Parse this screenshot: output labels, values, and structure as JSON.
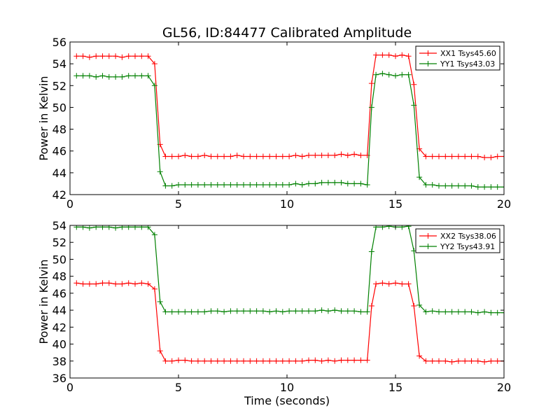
{
  "chart_data": [
    {
      "type": "line",
      "title": "GL56, ID:84477 Calibrated Amplitude",
      "xlabel": "",
      "ylabel": "Power in Kelvin",
      "xlim": [
        0,
        20
      ],
      "ylim": [
        42,
        56
      ],
      "x_ticks": [
        "0",
        "5",
        "10",
        "15",
        "20"
      ],
      "y_ticks": [
        "42",
        "44",
        "46",
        "48",
        "50",
        "52",
        "54",
        "56"
      ],
      "legend_position": "top-right",
      "grid": false,
      "x": [
        0.3,
        0.6,
        0.9,
        1.2,
        1.5,
        1.8,
        2.1,
        2.4,
        2.7,
        3.0,
        3.3,
        3.6,
        3.9,
        4.15,
        4.4,
        4.7,
        5.0,
        5.3,
        5.6,
        5.9,
        6.2,
        6.5,
        6.8,
        7.1,
        7.4,
        7.7,
        8.0,
        8.3,
        8.6,
        8.9,
        9.2,
        9.5,
        9.8,
        10.1,
        10.4,
        10.7,
        11.0,
        11.3,
        11.6,
        11.9,
        12.2,
        12.5,
        12.8,
        13.1,
        13.4,
        13.7,
        13.9,
        14.1,
        14.4,
        14.7,
        15.0,
        15.3,
        15.6,
        15.85,
        16.1,
        16.4,
        16.7,
        17.0,
        17.3,
        17.6,
        17.9,
        18.2,
        18.5,
        18.8,
        19.1,
        19.4,
        19.7,
        20.0
      ],
      "series": [
        {
          "name": "XX1 Tsys45.60",
          "color": "#ff0000",
          "values": [
            54.7,
            54.7,
            54.6,
            54.7,
            54.7,
            54.7,
            54.7,
            54.6,
            54.7,
            54.7,
            54.7,
            54.7,
            54.0,
            46.6,
            45.5,
            45.5,
            45.5,
            45.6,
            45.5,
            45.5,
            45.6,
            45.5,
            45.5,
            45.5,
            45.5,
            45.6,
            45.5,
            45.5,
            45.5,
            45.5,
            45.5,
            45.5,
            45.5,
            45.5,
            45.6,
            45.5,
            45.6,
            45.6,
            45.6,
            45.6,
            45.6,
            45.7,
            45.6,
            45.7,
            45.6,
            45.6,
            52.2,
            54.8,
            54.8,
            54.8,
            54.7,
            54.8,
            54.7,
            52.1,
            46.2,
            45.5,
            45.5,
            45.5,
            45.5,
            45.5,
            45.5,
            45.5,
            45.5,
            45.5,
            45.4,
            45.4,
            45.5,
            45.5
          ]
        },
        {
          "name": "YY1 Tsys43.03",
          "color": "#008000",
          "values": [
            52.9,
            52.9,
            52.9,
            52.8,
            52.9,
            52.8,
            52.8,
            52.8,
            52.9,
            52.9,
            52.9,
            52.9,
            52.0,
            44.1,
            42.8,
            42.8,
            42.9,
            42.9,
            42.9,
            42.9,
            42.9,
            42.9,
            42.9,
            42.9,
            42.9,
            42.9,
            42.9,
            42.9,
            42.9,
            42.9,
            42.9,
            42.9,
            42.9,
            42.9,
            43.0,
            42.9,
            43.0,
            43.0,
            43.1,
            43.1,
            43.1,
            43.1,
            43.0,
            43.0,
            43.0,
            42.9,
            50.0,
            53.0,
            53.1,
            53.0,
            52.9,
            53.0,
            53.0,
            50.2,
            43.6,
            42.9,
            42.9,
            42.8,
            42.8,
            42.8,
            42.8,
            42.8,
            42.8,
            42.7,
            42.7,
            42.7,
            42.7,
            42.7
          ]
        }
      ]
    },
    {
      "type": "line",
      "title": "",
      "xlabel": "Time (seconds)",
      "ylabel": "Power in Kelvin",
      "xlim": [
        0,
        20
      ],
      "ylim": [
        36,
        54
      ],
      "x_ticks": [
        "0",
        "5",
        "10",
        "15",
        "20"
      ],
      "y_ticks": [
        "36",
        "38",
        "40",
        "42",
        "44",
        "46",
        "48",
        "50",
        "52",
        "54"
      ],
      "legend_position": "top-right",
      "grid": false,
      "x": [
        0.3,
        0.6,
        0.9,
        1.2,
        1.5,
        1.8,
        2.1,
        2.4,
        2.7,
        3.0,
        3.3,
        3.6,
        3.9,
        4.15,
        4.4,
        4.7,
        5.0,
        5.3,
        5.6,
        5.9,
        6.2,
        6.5,
        6.8,
        7.1,
        7.4,
        7.7,
        8.0,
        8.3,
        8.6,
        8.9,
        9.2,
        9.5,
        9.8,
        10.1,
        10.4,
        10.7,
        11.0,
        11.3,
        11.6,
        11.9,
        12.2,
        12.5,
        12.8,
        13.1,
        13.4,
        13.7,
        13.9,
        14.1,
        14.4,
        14.7,
        15.0,
        15.3,
        15.6,
        15.85,
        16.1,
        16.4,
        16.7,
        17.0,
        17.3,
        17.6,
        17.9,
        18.2,
        18.5,
        18.8,
        19.1,
        19.4,
        19.7,
        20.0
      ],
      "series": [
        {
          "name": "XX2 Tsys38.06",
          "color": "#ff0000",
          "values": [
            47.2,
            47.1,
            47.1,
            47.1,
            47.2,
            47.2,
            47.1,
            47.1,
            47.2,
            47.1,
            47.2,
            47.1,
            46.5,
            39.2,
            38.0,
            38.0,
            38.1,
            38.1,
            38.0,
            38.0,
            38.0,
            38.0,
            38.0,
            38.0,
            38.0,
            38.0,
            38.0,
            38.0,
            38.0,
            38.0,
            38.0,
            38.0,
            38.0,
            38.0,
            38.0,
            38.0,
            38.1,
            38.1,
            38.0,
            38.1,
            38.0,
            38.1,
            38.1,
            38.1,
            38.1,
            38.1,
            44.5,
            47.1,
            47.2,
            47.1,
            47.2,
            47.1,
            47.1,
            44.5,
            38.6,
            38.0,
            38.0,
            38.0,
            38.0,
            37.9,
            38.0,
            38.0,
            38.0,
            38.0,
            37.9,
            38.0,
            38.0,
            38.0
          ]
        },
        {
          "name": "YY2 Tsys43.91",
          "color": "#008000",
          "values": [
            53.8,
            53.8,
            53.7,
            53.8,
            53.8,
            53.8,
            53.7,
            53.8,
            53.8,
            53.8,
            53.8,
            53.8,
            52.9,
            45.0,
            43.8,
            43.8,
            43.8,
            43.8,
            43.8,
            43.8,
            43.8,
            43.9,
            43.9,
            43.8,
            43.9,
            43.9,
            43.9,
            43.9,
            43.9,
            43.9,
            43.8,
            43.9,
            43.8,
            43.9,
            43.9,
            43.9,
            43.9,
            43.9,
            44.0,
            43.9,
            44.0,
            43.9,
            43.9,
            43.9,
            43.8,
            43.8,
            50.9,
            53.8,
            53.8,
            53.9,
            53.8,
            53.8,
            53.9,
            51.0,
            44.6,
            43.8,
            43.9,
            43.8,
            43.8,
            43.8,
            43.8,
            43.8,
            43.8,
            43.7,
            43.8,
            43.7,
            43.7,
            43.7
          ]
        }
      ]
    }
  ]
}
